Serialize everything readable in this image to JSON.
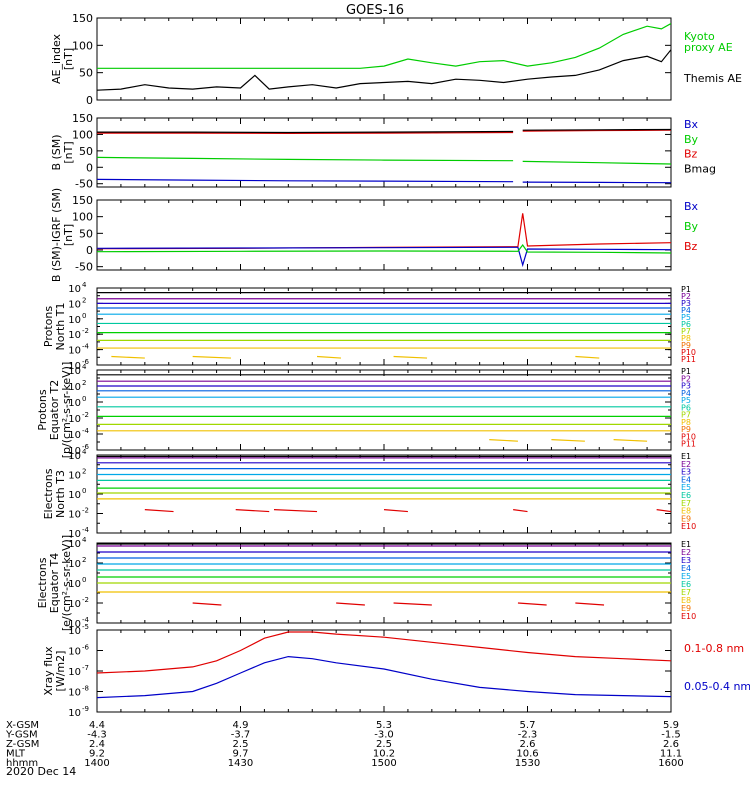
{
  "title": "GOES-16",
  "date_label": "2020 Dec 14",
  "colors": {
    "black": "#000000",
    "red": "#e00000",
    "green": "#00cc00",
    "blue": "#0000c8",
    "P": [
      "#000000",
      "#7a0096",
      "#2000c8",
      "#0060e0",
      "#00a8e8",
      "#00c8a0",
      "#00d000",
      "#a0d800",
      "#f0c000",
      "#f07000",
      "#e00000"
    ],
    "E": [
      "#000000",
      "#7a0096",
      "#2000c8",
      "#0060e0",
      "#00a8e8",
      "#00c8a0",
      "#00d000",
      "#a0d800",
      "#f0c000",
      "#f07000"
    ]
  },
  "chart_data": [
    {
      "id": "ae",
      "type": "line",
      "ylabel": [
        "AE_index",
        "[nT]"
      ],
      "ylim": [
        0,
        150
      ],
      "yscale": "linear",
      "ticks": [
        "0",
        "50",
        "100",
        "150"
      ],
      "tick_values": [
        0,
        50,
        100,
        150
      ],
      "x": [
        1400,
        1405,
        1410,
        1415,
        1420,
        1425,
        1430,
        1433,
        1436,
        1440,
        1445,
        1450,
        1455,
        1500,
        1505,
        1510,
        1515,
        1520,
        1525,
        1530,
        1535,
        1540,
        1545,
        1550,
        1555,
        1558,
        1600
      ],
      "series": [
        {
          "name": "Kyoto proxy AE",
          "color": "#00cc00",
          "values": [
            58,
            58,
            58,
            58,
            58,
            58,
            58,
            58,
            58,
            58,
            58,
            58,
            58,
            62,
            75,
            68,
            62,
            70,
            72,
            62,
            68,
            78,
            95,
            120,
            135,
            130,
            140
          ]
        },
        {
          "name": "Themis AE",
          "color": "#000000",
          "values": [
            18,
            20,
            28,
            22,
            20,
            24,
            22,
            45,
            20,
            24,
            28,
            22,
            30,
            32,
            34,
            30,
            38,
            36,
            32,
            38,
            42,
            45,
            55,
            72,
            80,
            70,
            92
          ]
        }
      ],
      "legend": [
        {
          "text": "Kyoto",
          "color": "#00cc00"
        },
        {
          "text": "proxy AE",
          "color": "#00cc00"
        },
        {
          "text": "Themis AE",
          "color": "#000000"
        }
      ]
    },
    {
      "id": "bsm",
      "type": "line",
      "ylabel": [
        "B (SM)",
        "[nT]"
      ],
      "ylim": [
        -60,
        150
      ],
      "yscale": "linear",
      "ticks": [
        "-50",
        "0",
        "50",
        "100",
        "150"
      ],
      "tick_values": [
        -50,
        0,
        50,
        100,
        150
      ],
      "gap": [
        1527,
        1529
      ],
      "x": [
        1400,
        1420,
        1440,
        1500,
        1527,
        1529,
        1545,
        1600
      ],
      "series": [
        {
          "name": "Bz",
          "color": "#e00000",
          "values": [
            104,
            104,
            103,
            104,
            106,
            110,
            112,
            113
          ]
        },
        {
          "name": "Bmag",
          "color": "#000000",
          "values": [
            107,
            107,
            106,
            107,
            109,
            113,
            114,
            115
          ]
        },
        {
          "name": "By",
          "color": "#00cc00",
          "values": [
            30,
            27,
            24,
            22,
            20,
            18,
            14,
            10
          ]
        },
        {
          "name": "Bx",
          "color": "#0000c8",
          "values": [
            -37,
            -39,
            -41,
            -42,
            -44,
            -45,
            -46,
            -47
          ]
        }
      ],
      "legend": [
        {
          "text": "Bx",
          "color": "#0000c8"
        },
        {
          "text": "By",
          "color": "#00cc00"
        },
        {
          "text": "Bz",
          "color": "#e00000"
        },
        {
          "text": "Bmag",
          "color": "#000000"
        }
      ]
    },
    {
      "id": "digrf",
      "type": "line",
      "ylabel": [
        "B (SM)-IGRF (SM)",
        "[nT]"
      ],
      "ylim": [
        -60,
        150
      ],
      "yscale": "linear",
      "ticks": [
        "-50",
        "0",
        "50",
        "100",
        "150"
      ],
      "tick_values": [
        -50,
        0,
        50,
        100,
        150
      ],
      "x": [
        1400,
        1430,
        1500,
        1528,
        1529,
        1530,
        1545,
        1600
      ],
      "series": [
        {
          "name": "Bz",
          "color": "#e00000",
          "values": [
            4,
            5,
            8,
            10,
            110,
            12,
            18,
            22
          ]
        },
        {
          "name": "Bx",
          "color": "#0000c8",
          "values": [
            5,
            6,
            7,
            8,
            -45,
            3,
            2,
            1
          ]
        },
        {
          "name": "By",
          "color": "#00cc00",
          "values": [
            -5,
            -4,
            -3,
            -4,
            15,
            -6,
            -7,
            -9
          ]
        }
      ],
      "legend": [
        {
          "text": "Bx",
          "color": "#0000c8"
        },
        {
          "text": "By",
          "color": "#00cc00"
        },
        {
          "text": "Bz",
          "color": "#e00000"
        }
      ]
    },
    {
      "id": "pt1",
      "type": "line",
      "yscale": "log",
      "ylabel": [
        "Protons",
        "North T1"
      ],
      "ylim_exp": [
        -6,
        4
      ],
      "tick_exps": [
        4,
        2,
        0,
        -2,
        -4,
        -6
      ],
      "ticks": [
        "10",
        "10",
        "10",
        "10",
        "10",
        "10"
      ],
      "tick_sups": [
        "4",
        "2",
        "0",
        "-2",
        "-4",
        "-6"
      ],
      "levels_log10": [
        3.4,
        2.6,
        2.0,
        1.4,
        0.6,
        -0.6,
        -1.8,
        -2.8,
        -3.8
      ],
      "segments_P9": [
        [
          1403,
          1410
        ],
        [
          1420,
          1428
        ],
        [
          1446,
          1451
        ],
        [
          1502,
          1509
        ],
        [
          1540,
          1545
        ]
      ],
      "legend": [
        {
          "text": "P1",
          "color": "#000000"
        },
        {
          "text": "P2",
          "color": "#7a0096"
        },
        {
          "text": "P3",
          "color": "#2000c8"
        },
        {
          "text": "P4",
          "color": "#0060e0"
        },
        {
          "text": "P5",
          "color": "#00a8e8"
        },
        {
          "text": "P6",
          "color": "#00c8a0"
        },
        {
          "text": "P7",
          "color": "#a0d800"
        },
        {
          "text": "P8",
          "color": "#f0c000"
        },
        {
          "text": "P9",
          "color": "#f07000"
        },
        {
          "text": "P10",
          "color": "#e00000"
        },
        {
          "text": "P11",
          "color": "#e00000"
        }
      ]
    },
    {
      "id": "pt2",
      "type": "line",
      "yscale": "log",
      "ylabel": [
        "Protons",
        "Equator T2",
        "[p/(cm²-s-sr-keV)]"
      ],
      "ylim_exp": [
        -6,
        4
      ],
      "tick_exps": [
        4,
        2,
        0,
        -2,
        -4,
        -6
      ],
      "ticks": [
        "10",
        "10",
        "10",
        "10",
        "10",
        "10"
      ],
      "tick_sups": [
        "4",
        "2",
        "0",
        "-2",
        "-4",
        "-6"
      ],
      "levels_log10": [
        3.4,
        2.6,
        2.0,
        1.4,
        0.6,
        -0.6,
        -1.8,
        -2.8,
        -3.6
      ],
      "segments_P9": [
        [
          1535,
          1542
        ],
        [
          1548,
          1555
        ],
        [
          1522,
          1528
        ]
      ],
      "legend": [
        {
          "text": "P1",
          "color": "#000000"
        },
        {
          "text": "P2",
          "color": "#7a0096"
        },
        {
          "text": "P3",
          "color": "#2000c8"
        },
        {
          "text": "P4",
          "color": "#0060e0"
        },
        {
          "text": "P5",
          "color": "#00a8e8"
        },
        {
          "text": "P6",
          "color": "#00c8a0"
        },
        {
          "text": "P7",
          "color": "#a0d800"
        },
        {
          "text": "P8",
          "color": "#f0c000"
        },
        {
          "text": "P9",
          "color": "#f07000"
        },
        {
          "text": "P10",
          "color": "#e00000"
        },
        {
          "text": "P11",
          "color": "#e00000"
        }
      ]
    },
    {
      "id": "et3",
      "type": "line",
      "yscale": "log",
      "ylabel": [
        "Electrons",
        "North T3"
      ],
      "ylim_exp": [
        -4,
        4
      ],
      "tick_exps": [
        4,
        2,
        0,
        -2,
        -4
      ],
      "ticks": [
        "10",
        "10",
        "10",
        "10",
        "10"
      ],
      "tick_sups": [
        "4",
        "2",
        "0",
        "-2",
        "-4"
      ],
      "levels_log10": [
        3.85,
        3.7,
        3.2,
        2.6,
        2.0,
        1.4,
        0.6,
        0.1,
        -0.5
      ],
      "segments_E10": [
        [
          1410,
          1416
        ],
        [
          1429,
          1436
        ],
        [
          1437,
          1446
        ],
        [
          1500,
          1505
        ],
        [
          1527,
          1530
        ],
        [
          1557,
          1600
        ]
      ],
      "legend": [
        {
          "text": "E1",
          "color": "#000000"
        },
        {
          "text": "E2",
          "color": "#7a0096"
        },
        {
          "text": "E3",
          "color": "#2000c8"
        },
        {
          "text": "E4",
          "color": "#0060e0"
        },
        {
          "text": "E5",
          "color": "#00a8e8"
        },
        {
          "text": "E6",
          "color": "#00c8a0"
        },
        {
          "text": "E7",
          "color": "#a0d800"
        },
        {
          "text": "E8",
          "color": "#f0c000"
        },
        {
          "text": "E9",
          "color": "#f07000"
        },
        {
          "text": "E10",
          "color": "#e00000"
        }
      ]
    },
    {
      "id": "et4",
      "type": "line",
      "yscale": "log",
      "ylabel": [
        "Electrons",
        "Equator T4",
        "[e/(cm²-s-sr-keV)]"
      ],
      "ylim_exp": [
        -4,
        4
      ],
      "tick_exps": [
        4,
        2,
        0,
        -2,
        -4
      ],
      "ticks": [
        "10",
        "10",
        "10",
        "10",
        "10"
      ],
      "tick_sups": [
        "4",
        "2",
        "0",
        "-2",
        "-4"
      ],
      "levels_log10": [
        3.9,
        3.7,
        3.1,
        2.5,
        1.9,
        1.3,
        0.6,
        0.0,
        -0.9
      ],
      "segments_E10": [
        [
          1420,
          1426
        ],
        [
          1450,
          1456
        ],
        [
          1502,
          1510
        ],
        [
          1528,
          1534
        ],
        [
          1540,
          1546
        ]
      ],
      "legend": [
        {
          "text": "E1",
          "color": "#000000"
        },
        {
          "text": "E2",
          "color": "#7a0096"
        },
        {
          "text": "E3",
          "color": "#2000c8"
        },
        {
          "text": "E4",
          "color": "#0060e0"
        },
        {
          "text": "E5",
          "color": "#00a8e8"
        },
        {
          "text": "E6",
          "color": "#00c8a0"
        },
        {
          "text": "E7",
          "color": "#a0d800"
        },
        {
          "text": "E8",
          "color": "#f0c000"
        },
        {
          "text": "E9",
          "color": "#f07000"
        },
        {
          "text": "E10",
          "color": "#e00000"
        }
      ]
    },
    {
      "id": "xray",
      "type": "line",
      "yscale": "log",
      "ylabel": [
        "Xray flux",
        "[W/m2]"
      ],
      "ylim_exp": [
        -9,
        -5
      ],
      "tick_exps": [
        -5,
        -6,
        -7,
        -8,
        -9
      ],
      "ticks": [
        "10",
        "10",
        "10",
        "10",
        "10"
      ],
      "tick_sups": [
        "-5",
        "-6",
        "-7",
        "-8",
        "-9"
      ],
      "x": [
        1400,
        1410,
        1420,
        1425,
        1430,
        1435,
        1440,
        1445,
        1450,
        1500,
        1510,
        1520,
        1530,
        1540,
        1550,
        1600
      ],
      "series": [
        {
          "name": "0.1-0.8 nm",
          "color": "#e00000",
          "log10_values": [
            -7.1,
            -7.0,
            -6.8,
            -6.5,
            -6.0,
            -5.4,
            -5.1,
            -5.1,
            -5.2,
            -5.35,
            -5.6,
            -5.85,
            -6.1,
            -6.3,
            -6.4,
            -6.5
          ]
        },
        {
          "name": "0.05-0.4 nm",
          "color": "#0000c8",
          "log10_values": [
            -8.3,
            -8.2,
            -8.0,
            -7.6,
            -7.1,
            -6.6,
            -6.3,
            -6.4,
            -6.6,
            -6.9,
            -7.4,
            -7.8,
            -8.0,
            -8.15,
            -8.2,
            -8.25
          ]
        }
      ],
      "legend": [
        {
          "text": "0.1-0.8 nm",
          "color": "#e00000"
        },
        {
          "text": "0.05-0.4 nm",
          "color": "#0000c8"
        }
      ]
    }
  ],
  "xaxis": {
    "row_labels": [
      "X-GSM",
      "Y-GSM",
      "Z-GSM",
      "MLT",
      "hhmm"
    ],
    "x": [
      1400,
      1430,
      1500,
      1530,
      1600
    ],
    "columns": [
      [
        "4.4",
        "-4.3",
        "2.4",
        "9.2",
        "1400"
      ],
      [
        "4.9",
        "-3.7",
        "2.5",
        "9.7",
        "1430"
      ],
      [
        "5.3",
        "-3.0",
        "2.5",
        "10.2",
        "1500"
      ],
      [
        "5.7",
        "-2.3",
        "2.6",
        "10.6",
        "1530"
      ],
      [
        "5.9",
        "-1.5",
        "2.6",
        "11.1",
        "1600"
      ]
    ]
  }
}
